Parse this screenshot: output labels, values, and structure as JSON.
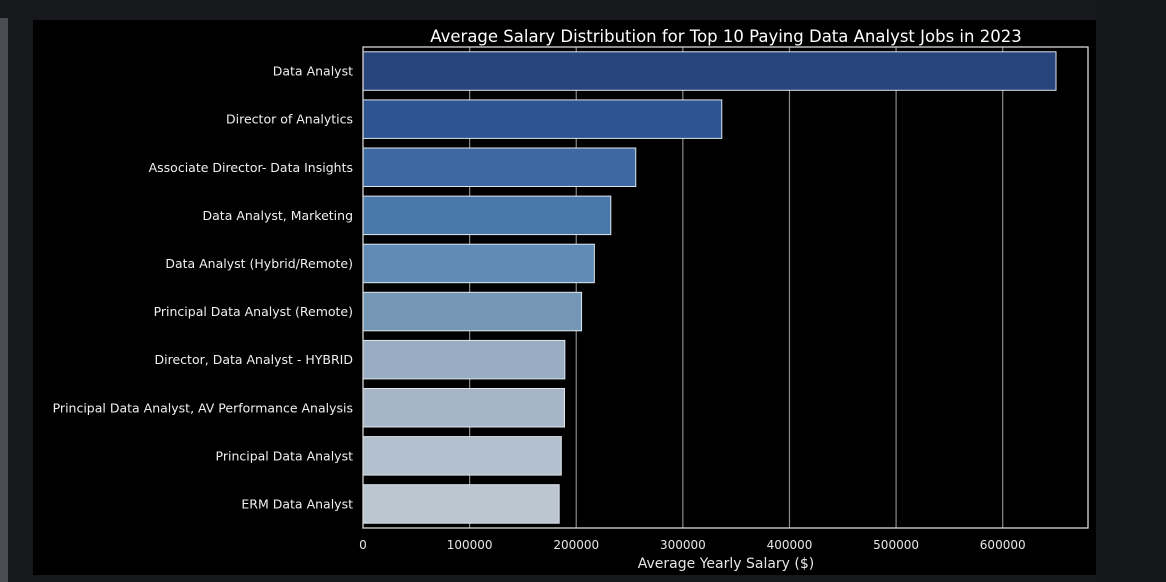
{
  "chart_data": {
    "type": "bar",
    "orientation": "horizontal",
    "title": "Average Salary Distribution for Top 10 Paying Data Analyst Jobs in 2023",
    "xlabel": "Average Yearly Salary ($)",
    "ylabel": "",
    "xlim": [
      0,
      680000
    ],
    "xticks": [
      0,
      100000,
      200000,
      300000,
      400000,
      500000,
      600000
    ],
    "xtick_labels": [
      "0",
      "100000",
      "200000",
      "300000",
      "400000",
      "500000",
      "600000"
    ],
    "grid": "vertical",
    "categories": [
      "Data Analyst",
      "Director of Analytics",
      "Associate Director- Data Insights",
      "Data Analyst, Marketing",
      "Data Analyst (Hybrid/Remote)",
      "Principal Data Analyst (Remote)",
      "Director, Data Analyst - HYBRID",
      "Principal Data Analyst, AV Performance Analysis",
      "Principal Data Analyst",
      "ERM Data Analyst"
    ],
    "values": [
      650000,
      336500,
      255830,
      232420,
      217000,
      205000,
      189310,
      189000,
      186000,
      184000
    ],
    "colors": [
      "#27457a",
      "#2d5592",
      "#3d68a2",
      "#4a78a8",
      "#5f8bb5",
      "#7597b6",
      "#98adc2",
      "#a6b6c6",
      "#b2bfcc",
      "#bcc6d0"
    ],
    "theme": {
      "background": "#000000",
      "frame": "#d8d8d8",
      "grid": "#8a8a8a",
      "text": "#eeeeee"
    }
  }
}
